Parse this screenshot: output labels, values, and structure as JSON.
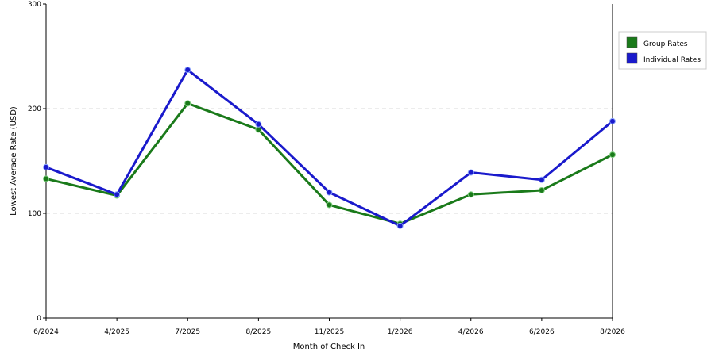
{
  "chart_data": {
    "type": "line",
    "title": "",
    "xlabel": "Month of Check In",
    "ylabel": "Lowest Average Rate (USD)",
    "ylim": [
      0,
      300
    ],
    "yticks": [
      0,
      100,
      200,
      300
    ],
    "grid": true,
    "legend_position": "right",
    "categories": [
      "6/2024",
      "4/2025",
      "7/2025",
      "8/2025",
      "11/2025",
      "1/2026",
      "4/2026",
      "6/2026",
      "8/2026"
    ],
    "series": [
      {
        "name": "Group Rates",
        "color": "#1a7a1a",
        "values": [
          133,
          117,
          205,
          180,
          108,
          90,
          118,
          122,
          156
        ]
      },
      {
        "name": "Individual Rates",
        "color": "#1a1acc",
        "values": [
          144,
          118,
          237,
          185,
          120,
          88,
          139,
          132,
          188
        ]
      }
    ]
  }
}
